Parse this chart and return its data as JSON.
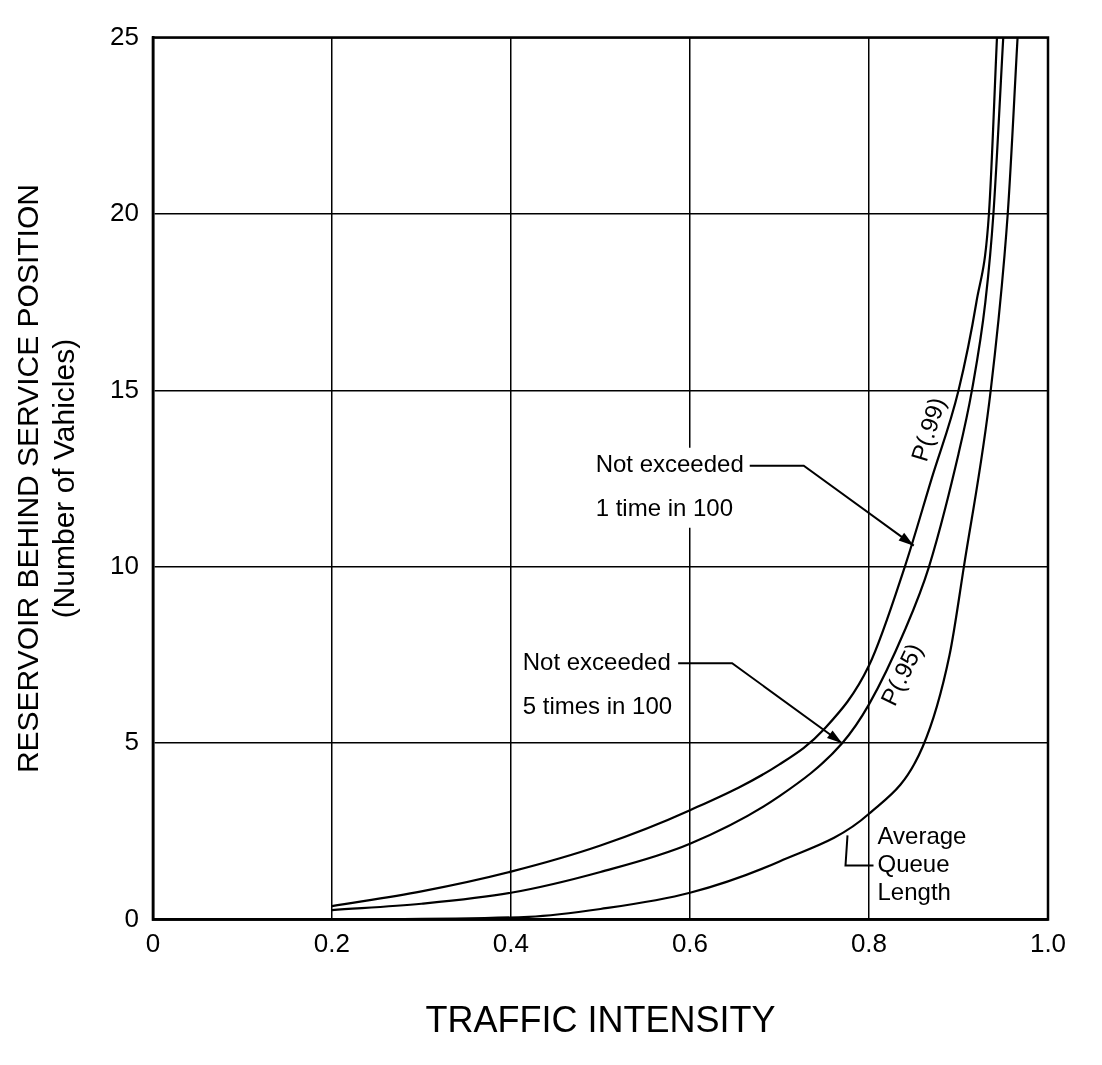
{
  "chart_data": {
    "type": "line",
    "xlabel": "TRAFFIC INTENSITY",
    "ylabel": "RESERVOIR BEHIND SERVICE POSITION\n(Number of Vahicles)",
    "xlim": [
      0,
      1
    ],
    "xticks": [
      0,
      0.2,
      0.4,
      0.6,
      0.8,
      {
        "value": 1,
        "label": "1.0"
      }
    ],
    "ylim": [
      0,
      25
    ],
    "yticks": [
      0,
      5,
      10,
      15,
      20,
      25
    ],
    "grid": true,
    "legend": false,
    "marker": "none",
    "line_style": "solid",
    "series": [
      {
        "name": "P(.99)",
        "color": "#000000",
        "x": [
          0.2,
          0.3,
          0.4,
          0.5,
          0.6,
          0.7,
          0.75,
          0.8,
          0.84,
          0.87,
          0.9,
          0.92,
          0.934,
          0.943
        ],
        "values": [
          0.38,
          0.8,
          1.36,
          2.1,
          3.1,
          4.4,
          5.4,
          7.2,
          10,
          12.5,
          15,
          17.5,
          20,
          25
        ]
      },
      {
        "name": "P(.95)",
        "color": "#000000",
        "x": [
          0.2,
          0.3,
          0.4,
          0.5,
          0.6,
          0.7,
          0.77,
          0.8,
          0.84,
          0.867,
          0.9,
          0.915,
          0.93,
          0.939,
          0.95
        ],
        "values": [
          0.27,
          0.45,
          0.76,
          1.35,
          2.15,
          3.5,
          5,
          6.1,
          8.2,
          10,
          13.2,
          15,
          17.5,
          20,
          25
        ]
      },
      {
        "color": "#000000",
        "x": [
          0.2,
          0.42,
          0.5,
          0.6,
          0.7,
          0.8,
          0.86,
          0.89,
          0.906,
          0.936,
          0.955,
          0.966
        ],
        "values": [
          0,
          0.08,
          0.3,
          0.76,
          1.65,
          3,
          4.9,
          7.5,
          10,
          15,
          20,
          25
        ]
      }
    ],
    "annotations": [
      {
        "text": "Not exceeded\n1 time in 100",
        "x": 0.85,
        "y": 10.6
      },
      {
        "text": "Not exceeded\n5 times in 100",
        "x": 0.77,
        "y": 5
      },
      {
        "text": "Average\nQueue\nLength",
        "x": 0.776,
        "y": 2.5
      }
    ]
  }
}
